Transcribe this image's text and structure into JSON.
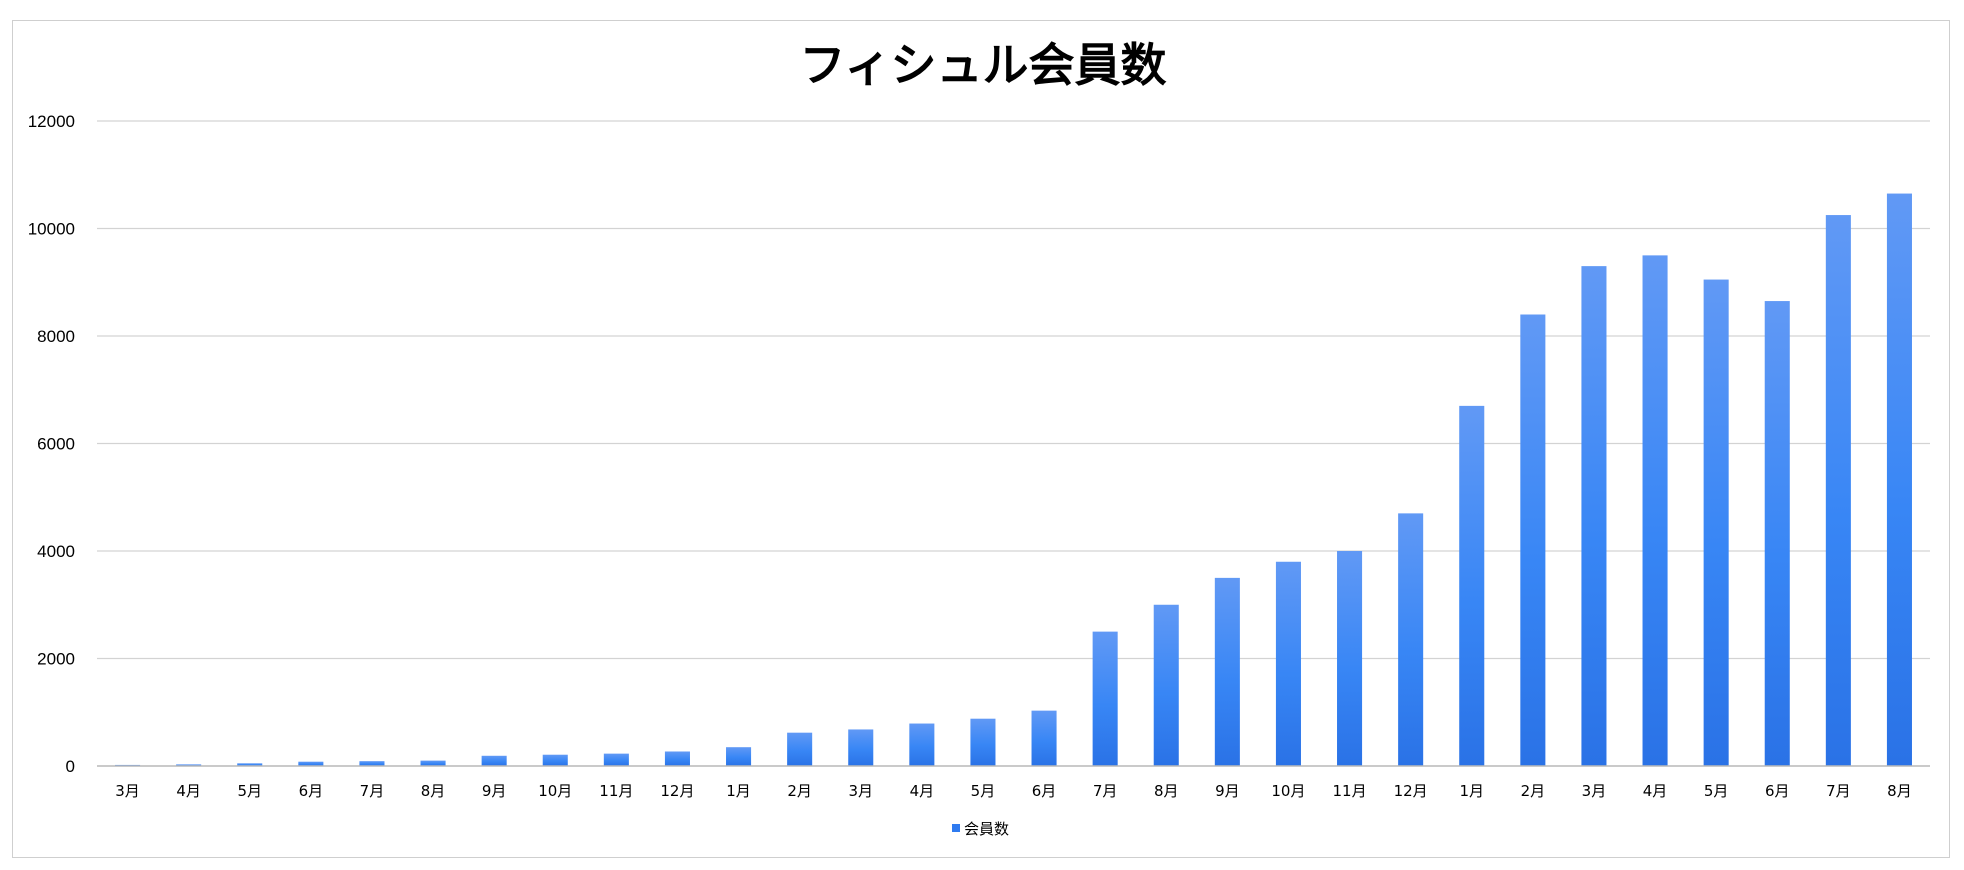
{
  "chart_data": {
    "type": "bar",
    "title": "フィシュル会員数",
    "xlabel": "",
    "ylabel": "",
    "ylim": [
      0,
      12000
    ],
    "yticks": [
      "0",
      "2000",
      "4000",
      "6000",
      "8000",
      "10000",
      "12000"
    ],
    "grid": true,
    "legend_position": "bottom",
    "categories": [
      "3月",
      "4月",
      "5月",
      "6月",
      "7月",
      "8月",
      "9月",
      "10月",
      "11月",
      "12月",
      "1月",
      "2月",
      "3月",
      "4月",
      "5月",
      "6月",
      "7月",
      "8月",
      "9月",
      "10月",
      "11月",
      "12月",
      "1月",
      "2月",
      "3月",
      "4月",
      "5月",
      "6月",
      "7月",
      "8月"
    ],
    "series": [
      {
        "name": "会員数",
        "color": "#2f7bf0",
        "values": [
          20,
          30,
          50,
          80,
          90,
          100,
          190,
          210,
          230,
          270,
          350,
          620,
          680,
          790,
          880,
          1030,
          2500,
          3000,
          3500,
          3800,
          4000,
          4700,
          6700,
          8400,
          9300,
          9500,
          9050,
          8650,
          10250,
          10650
        ]
      }
    ]
  }
}
